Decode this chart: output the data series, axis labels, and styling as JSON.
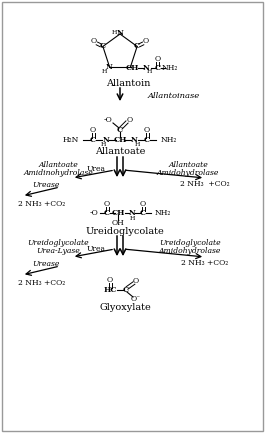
{
  "bg_color": "#ffffff",
  "border_color": "#999999",
  "fig_width": 2.65,
  "fig_height": 4.33,
  "dpi": 100,
  "allantoin_label": "Allantoin",
  "allantoinase_label": "Allantoinase",
  "allantoate_label": "Allantoate",
  "enzyme1_left_l1": "Allantoate",
  "enzyme1_left_l2": "Amidinohydrolase",
  "enzyme1_right_l1": "Allantoate",
  "enzyme1_right_l2": "Amidohydrolase",
  "urea1": "Urea",
  "byproduct1_right": "2 NH₃  +CO₂",
  "urease1_label": "Urease",
  "byproduct1_left": "2 NH₃ +CO₂",
  "ureidoglycolate_label": "Ureidoglycolate",
  "enzyme2_left_l1": "Ureidoglycolate",
  "enzyme2_left_l2": "Urea-Lyase",
  "enzyme2_right_l1": "Ureidoglycolate",
  "enzyme2_right_l2": "Amidohydrolase",
  "urea2": "Urea",
  "byproduct2_right": "2 NH₃ +CO₂",
  "urease2_label": "Urease",
  "byproduct2_left": "2 NH₃ +CO₂",
  "glyoxylate_label": "Glyoxylate"
}
